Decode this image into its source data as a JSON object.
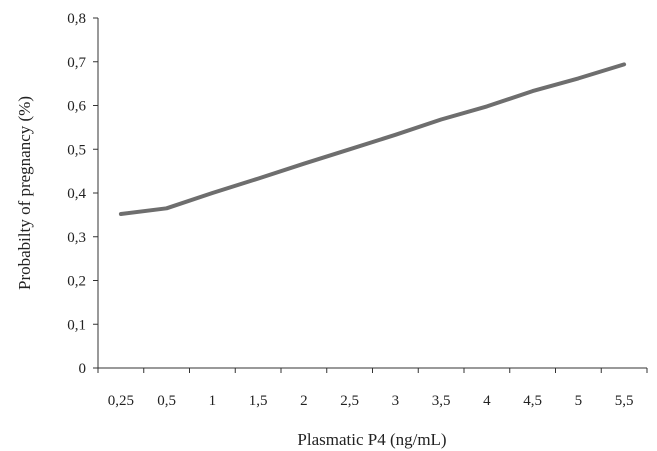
{
  "chart_data": {
    "type": "line",
    "title": "",
    "xlabel": "Plasmatic P4 (ng/mL)",
    "ylabel": "Probabilty of pregnancy (%)",
    "categories": [
      "0,25",
      "0,5",
      "1",
      "1,5",
      "2",
      "2,5",
      "3",
      "3,5",
      "4",
      "4,5",
      "5",
      "5,5"
    ],
    "ylim": [
      0,
      0.8
    ],
    "yticks": [
      "0",
      "0,1",
      "0,2",
      "0,3",
      "0,4",
      "0,5",
      "0,6",
      "0,7",
      "0,8"
    ],
    "grid": false,
    "legend": "none",
    "series": [
      {
        "values": [
          0.352,
          0.365,
          0.4,
          0.433,
          0.467,
          0.5,
          0.533,
          0.568,
          0.598,
          0.633,
          0.662,
          0.694
        ],
        "color": "#6e6e6e"
      }
    ]
  }
}
